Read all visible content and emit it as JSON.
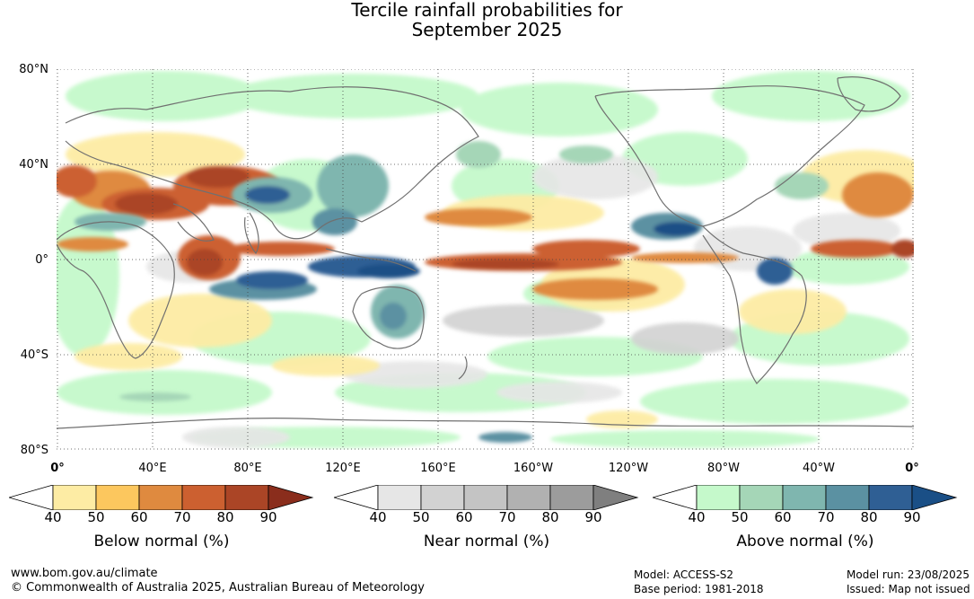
{
  "title": {
    "line1": "Tercile rainfall probabilities for",
    "line2": "September 2025"
  },
  "map": {
    "lat_labels": [
      "80°N",
      "40°N",
      "0°",
      "40°S",
      "80°S"
    ],
    "lon_labels": [
      "0°",
      "40°E",
      "80°E",
      "120°E",
      "160°E",
      "160°W",
      "120°W",
      "80°W",
      "40°W",
      "0°"
    ]
  },
  "legends": {
    "below": {
      "title": "Below normal (%)",
      "ticks": [
        "40",
        "50",
        "60",
        "70",
        "80",
        "90"
      ],
      "colors": [
        "#ffffff",
        "#fdeca4",
        "#fcc75e",
        "#df8a3f",
        "#cc6030",
        "#ab4526",
        "#8a2d1c"
      ]
    },
    "near": {
      "title": "Near normal (%)",
      "ticks": [
        "40",
        "50",
        "60",
        "70",
        "80",
        "90"
      ],
      "colors": [
        "#ffffff",
        "#e6e6e6",
        "#d2d2d2",
        "#c4c4c4",
        "#b1b1b1",
        "#9c9c9c",
        "#7f7f7f"
      ]
    },
    "above": {
      "title": "Above normal (%)",
      "ticks": [
        "40",
        "50",
        "60",
        "70",
        "80",
        "90"
      ],
      "colors": [
        "#ffffff",
        "#c5f9cb",
        "#a5d6b7",
        "#7fb6af",
        "#5b91a2",
        "#2f5f94",
        "#1a4f86"
      ]
    }
  },
  "footer": {
    "website": "www.bom.gov.au/climate",
    "copyright": "© Commonwealth of Australia 2025, Australian Bureau of Meteorology",
    "model": "Model: ACCESS-S2",
    "base_period": "Base period: 1981-2018",
    "model_run": "Model run: 23/08/2025",
    "issued": "Issued: Map not issued"
  }
}
